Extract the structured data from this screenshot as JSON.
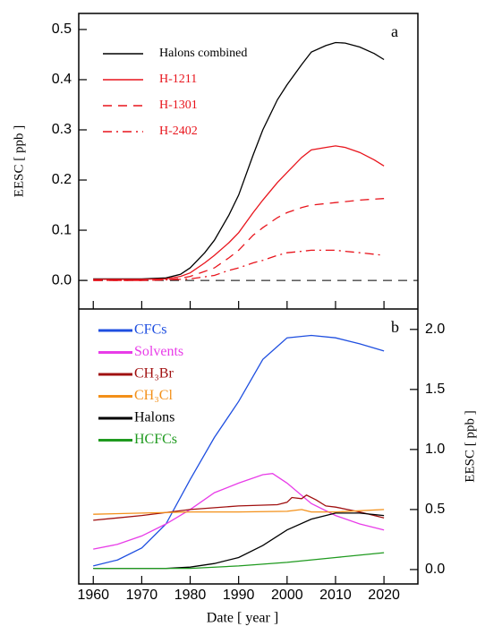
{
  "chart_data": [
    {
      "type": "line",
      "panel_label": "a",
      "ylabel": "EESC [ ppb ]",
      "y_axis_side": "left",
      "legend": "upper left",
      "xlim": [
        1957,
        2027
      ],
      "xticks": [
        1960,
        1970,
        1980,
        1990,
        2000,
        2010,
        2020
      ],
      "ylim": [
        -0.057,
        0.532
      ],
      "yticks": [
        {
          "value": 0,
          "label": "0.0"
        },
        0.1,
        0.2,
        0.3,
        0.4,
        0.5
      ],
      "x": [
        1960,
        1965,
        1970,
        1975,
        1978,
        1980,
        1983,
        1985,
        1988,
        1990,
        1993,
        1995,
        1998,
        2000,
        2003,
        2005,
        2008,
        2010,
        2012,
        2015,
        2018,
        2020
      ],
      "series": [
        {
          "name": "Halons combined",
          "color": "#000000",
          "dash": "solid",
          "values": [
            0.003,
            0.003,
            0.003,
            0.005,
            0.012,
            0.025,
            0.055,
            0.08,
            0.13,
            0.17,
            0.25,
            0.3,
            0.36,
            0.39,
            0.43,
            0.455,
            0.468,
            0.474,
            0.473,
            0.465,
            0.452,
            0.44
          ]
        },
        {
          "name": "H-1211",
          "color": "#e8141c",
          "dash": "solid",
          "values": [
            0.002,
            0.002,
            0.002,
            0.003,
            0.008,
            0.015,
            0.035,
            0.05,
            0.075,
            0.095,
            0.135,
            0.16,
            0.195,
            0.215,
            0.245,
            0.26,
            0.265,
            0.268,
            0.265,
            0.255,
            0.24,
            0.228
          ]
        },
        {
          "name": "H-1301",
          "color": "#e8141c",
          "dash": "dashed",
          "values": [
            0,
            0,
            0,
            0.001,
            0.004,
            0.008,
            0.018,
            0.025,
            0.045,
            0.06,
            0.09,
            0.105,
            0.125,
            0.135,
            0.145,
            0.15,
            0.153,
            0.155,
            0.157,
            0.16,
            0.162,
            0.163
          ]
        },
        {
          "name": "H-2402",
          "color": "#e8141c",
          "dash": "dashdot",
          "values": [
            0,
            0,
            0,
            0.001,
            0.002,
            0.003,
            0.007,
            0.01,
            0.02,
            0.025,
            0.035,
            0.04,
            0.05,
            0.055,
            0.058,
            0.06,
            0.06,
            0.06,
            0.058,
            0.055,
            0.052,
            0.05
          ]
        }
      ]
    },
    {
      "type": "line",
      "panel_label": "b",
      "ylabel": "EESC [ ppb ]",
      "y_axis_side": "right",
      "legend": "upper left",
      "xlabel": "Date [ year ]",
      "xlim": [
        1957,
        2027
      ],
      "xticks": [
        1960,
        1970,
        1980,
        1990,
        2000,
        2010,
        2020
      ],
      "ylim": [
        -0.12,
        2.17
      ],
      "yticks": [
        {
          "value": 0,
          "label": "0.0"
        },
        0.5,
        {
          "value": 1,
          "label": "1.0"
        },
        1.5,
        {
          "value": 2,
          "label": "2.0"
        }
      ],
      "series": [
        {
          "name": "CFCs",
          "color": "#1f4fe0",
          "x": [
            1960,
            1965,
            1970,
            1975,
            1980,
            1985,
            1990,
            1995,
            2000,
            2005,
            2010,
            2015,
            2020
          ],
          "values": [
            0.03,
            0.08,
            0.18,
            0.38,
            0.75,
            1.1,
            1.4,
            1.75,
            1.93,
            1.95,
            1.93,
            1.88,
            1.82
          ]
        },
        {
          "name": "Solvents",
          "color": "#e83ce8",
          "x": [
            1960,
            1965,
            1970,
            1975,
            1980,
            1985,
            1990,
            1995,
            1997,
            2000,
            2005,
            2010,
            2015,
            2020
          ],
          "values": [
            0.17,
            0.21,
            0.28,
            0.38,
            0.5,
            0.64,
            0.72,
            0.79,
            0.8,
            0.72,
            0.55,
            0.45,
            0.38,
            0.33
          ]
        },
        {
          "name": "CH₃Br",
          "color": "#a01010",
          "x": [
            1960,
            1970,
            1980,
            1990,
            1998,
            2000,
            2001,
            2003,
            2004,
            2006,
            2008,
            2010,
            2015,
            2020
          ],
          "values": [
            0.41,
            0.45,
            0.5,
            0.53,
            0.54,
            0.56,
            0.6,
            0.59,
            0.62,
            0.58,
            0.53,
            0.52,
            0.48,
            0.43
          ]
        },
        {
          "name": "CH₃Cl",
          "color": "#f39019",
          "x": [
            1960,
            1970,
            1980,
            1990,
            2000,
            2003,
            2005,
            2010,
            2020
          ],
          "values": [
            0.46,
            0.47,
            0.48,
            0.48,
            0.485,
            0.5,
            0.48,
            0.48,
            0.5
          ]
        },
        {
          "name": "Halons",
          "color": "#000000",
          "x": [
            1960,
            1975,
            1980,
            1985,
            1990,
            1995,
            2000,
            2005,
            2010,
            2015,
            2020
          ],
          "values": [
            0.01,
            0.01,
            0.02,
            0.05,
            0.1,
            0.2,
            0.33,
            0.42,
            0.47,
            0.47,
            0.45
          ]
        },
        {
          "name": "HCFCs",
          "color": "#1f9a1f",
          "x": [
            1960,
            1980,
            1990,
            2000,
            2010,
            2020
          ],
          "values": [
            0.01,
            0.01,
            0.03,
            0.06,
            0.1,
            0.14
          ]
        }
      ]
    }
  ]
}
